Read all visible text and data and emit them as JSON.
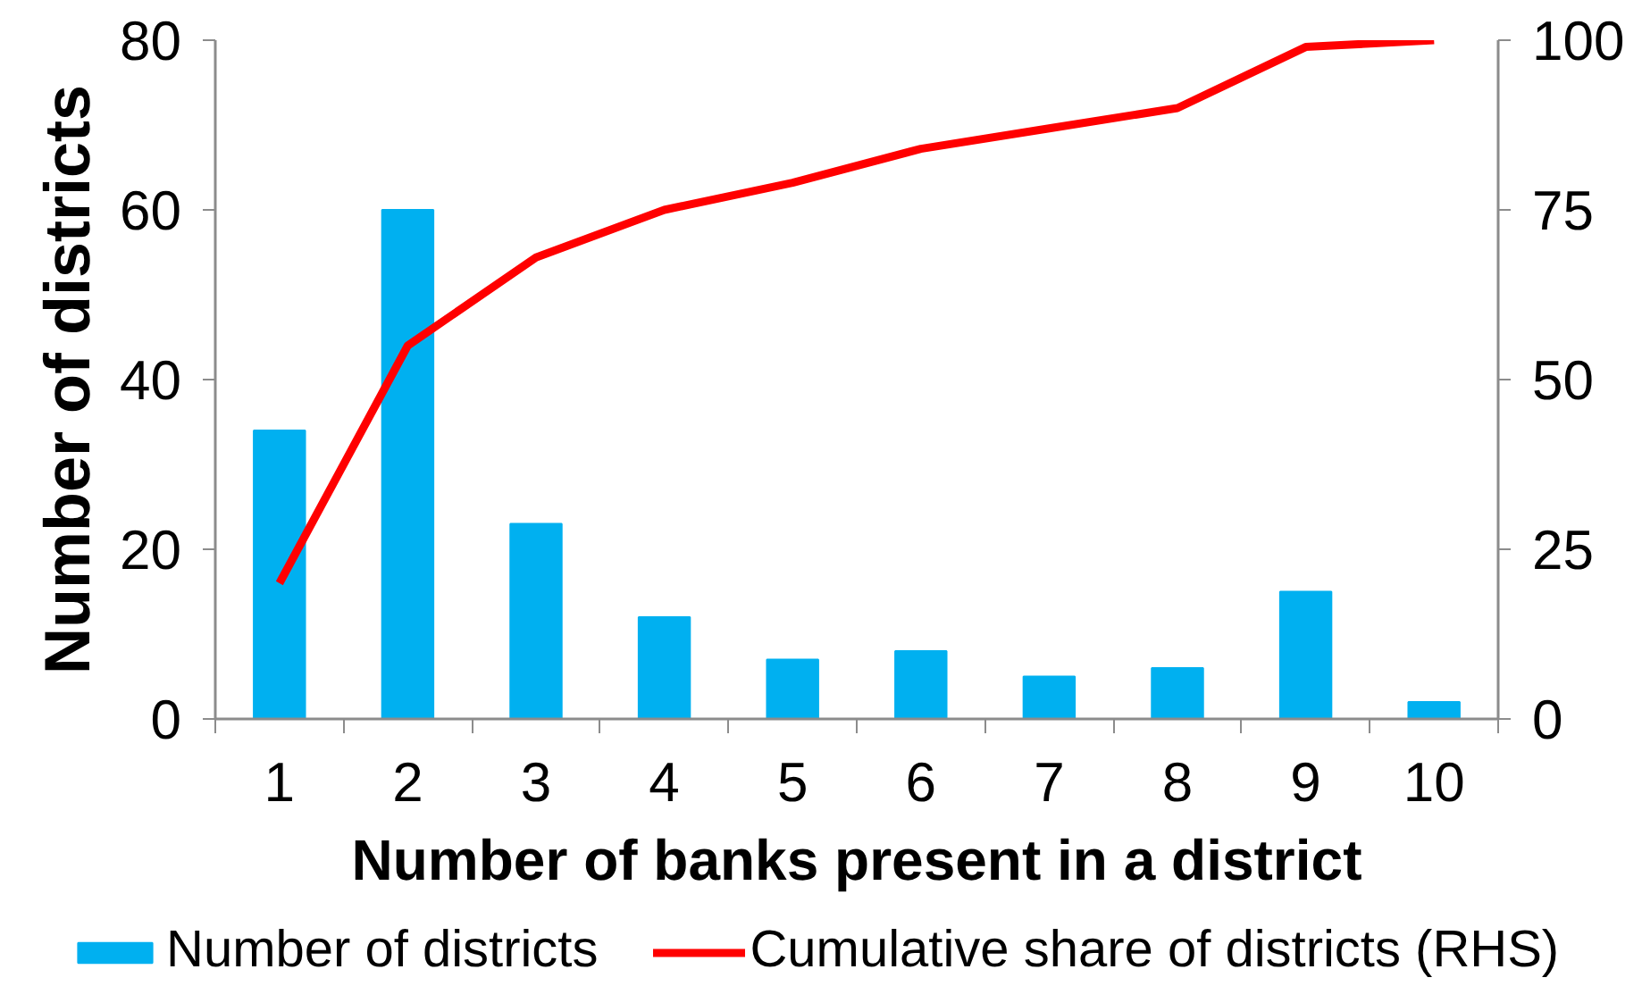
{
  "chart_data": {
    "type": "bar",
    "xlabel": "Number of banks present in a district",
    "ylabel": "Number of districts",
    "categories": [
      "1",
      "2",
      "3",
      "4",
      "5",
      "6",
      "7",
      "8",
      "9",
      "10"
    ],
    "series": [
      {
        "name": "Number of districts",
        "color": "#00b0f0",
        "values": [
          34,
          60,
          23,
          12,
          7,
          8,
          5,
          6,
          15,
          2
        ]
      },
      {
        "name": "Cumulative share of districts (RHS)",
        "type": "line",
        "axis": "y2",
        "color": "#ff0000",
        "values": [
          20,
          55,
          68,
          75,
          79,
          84,
          87,
          90,
          99,
          100
        ]
      }
    ],
    "ylim": [
      0,
      80
    ],
    "yticks": [
      0,
      20,
      40,
      60,
      80
    ],
    "y2lim": [
      0,
      100
    ],
    "y2ticks": [
      0,
      25,
      50,
      75,
      100
    ],
    "grid": false,
    "legend": "bottom"
  }
}
